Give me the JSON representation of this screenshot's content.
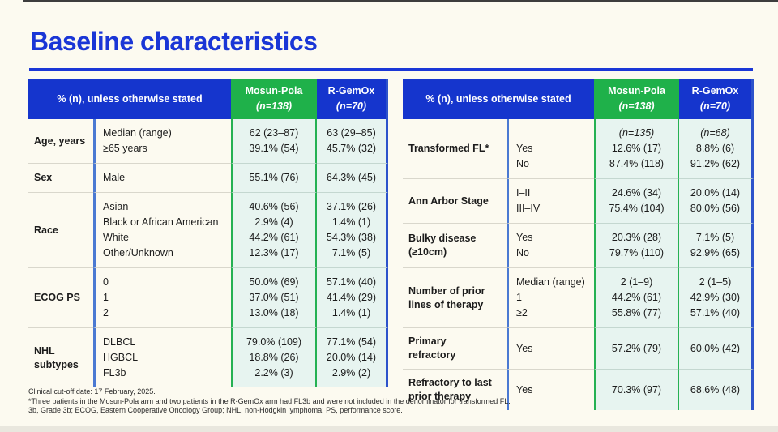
{
  "page": {
    "title": "Baseline characteristics",
    "footnotes": [
      "Clinical cut-off date: 17 February, 2025.",
      "*Three patients in the Mosun-Pola arm and two patients in the R-GemOx arm had FL3b and were not included in the denominator for transformed FL.",
      "3b, Grade 3b; ECOG, Eastern Cooperative Oncology Group; NHL, non-Hodgkin lymphoma; PS, performance score."
    ],
    "colors": {
      "title_blue": "#1a36d6",
      "header_blue": "#1535cd",
      "header_green": "#1fb14a",
      "mint_column_bg": "#e7f4f0",
      "page_cream": "#fcfaf0",
      "divider_blue": "#4b79d2",
      "border_green": "#25b153",
      "border_blue": "#2d53cb"
    }
  },
  "tables": [
    {
      "header": {
        "label": "% (n), unless otherwise stated",
        "arm1": [
          "Mosun-Pola",
          "(n=138)"
        ],
        "arm2": [
          "R-GemOx",
          "(n=70)"
        ]
      },
      "rows": [
        {
          "category": "Age, years",
          "sub": [
            "Median (range)",
            "≥65 years"
          ],
          "arm1": [
            "62 (23–87)",
            "39.1% (54)"
          ],
          "arm2": [
            "63 (29–85)",
            "45.7% (32)"
          ]
        },
        {
          "category": "Sex",
          "sub": [
            "Male"
          ],
          "arm1": [
            "55.1% (76)"
          ],
          "arm2": [
            "64.3% (45)"
          ]
        },
        {
          "category": "Race",
          "sub": [
            "Asian",
            "Black or African American",
            "White",
            "Other/Unknown"
          ],
          "arm1": [
            "40.6% (56)",
            "2.9% (4)",
            "44.2% (61)",
            "12.3% (17)"
          ],
          "arm2": [
            "37.1% (26)",
            "1.4% (1)",
            "54.3% (38)",
            "7.1% (5)"
          ]
        },
        {
          "category": "ECOG PS",
          "sub": [
            "0",
            "1",
            "2"
          ],
          "arm1": [
            "50.0% (69)",
            "37.0% (51)",
            "13.0% (18)"
          ],
          "arm2": [
            "57.1% (40)",
            "41.4% (29)",
            "1.4% (1)"
          ]
        },
        {
          "category": "NHL\nsubtypes",
          "sub": [
            "DLBCL",
            "HGBCL",
            "FL3b"
          ],
          "arm1": [
            "79.0% (109)",
            "18.8% (26)",
            "2.2% (3)"
          ],
          "arm2": [
            "77.1% (54)",
            "20.0% (14)",
            "2.9% (2)"
          ]
        }
      ]
    },
    {
      "header": {
        "label": "% (n), unless otherwise stated",
        "arm1": [
          "Mosun-Pola",
          "(n=138)"
        ],
        "arm2": [
          "R-GemOx",
          "(n=70)"
        ]
      },
      "rows": [
        {
          "category": "Transformed FL*",
          "sub": [
            "",
            "Yes",
            "No"
          ],
          "arm1": [
            "(n=135)",
            "12.6% (17)",
            "87.4% (118)"
          ],
          "arm2": [
            "(n=68)",
            "8.8% (6)",
            "91.2% (62)"
          ]
        },
        {
          "category": "Ann Arbor Stage",
          "sub": [
            "I–II",
            "III–IV"
          ],
          "arm1": [
            "24.6% (34)",
            "75.4% (104)"
          ],
          "arm2": [
            "20.0% (14)",
            "80.0% (56)"
          ]
        },
        {
          "category": "Bulky disease\n(≥10cm)",
          "sub": [
            "Yes",
            "No"
          ],
          "arm1": [
            "20.3% (28)",
            "79.7% (110)"
          ],
          "arm2": [
            "7.1% (5)",
            "92.9% (65)"
          ]
        },
        {
          "category": "Number of prior\nlines of therapy",
          "sub": [
            "Median (range)",
            "1",
            "≥2"
          ],
          "arm1": [
            "2 (1–9)",
            "44.2% (61)",
            "55.8% (77)"
          ],
          "arm2": [
            "2 (1–5)",
            "42.9% (30)",
            "57.1% (40)"
          ]
        },
        {
          "category": "Primary\nrefractory",
          "sub": [
            "Yes"
          ],
          "arm1": [
            "57.2% (79)"
          ],
          "arm2": [
            "60.0% (42)"
          ]
        },
        {
          "category": "Refractory to last\nprior therapy",
          "sub": [
            "Yes"
          ],
          "arm1": [
            "70.3% (97)"
          ],
          "arm2": [
            "68.6% (48)"
          ]
        }
      ]
    }
  ]
}
